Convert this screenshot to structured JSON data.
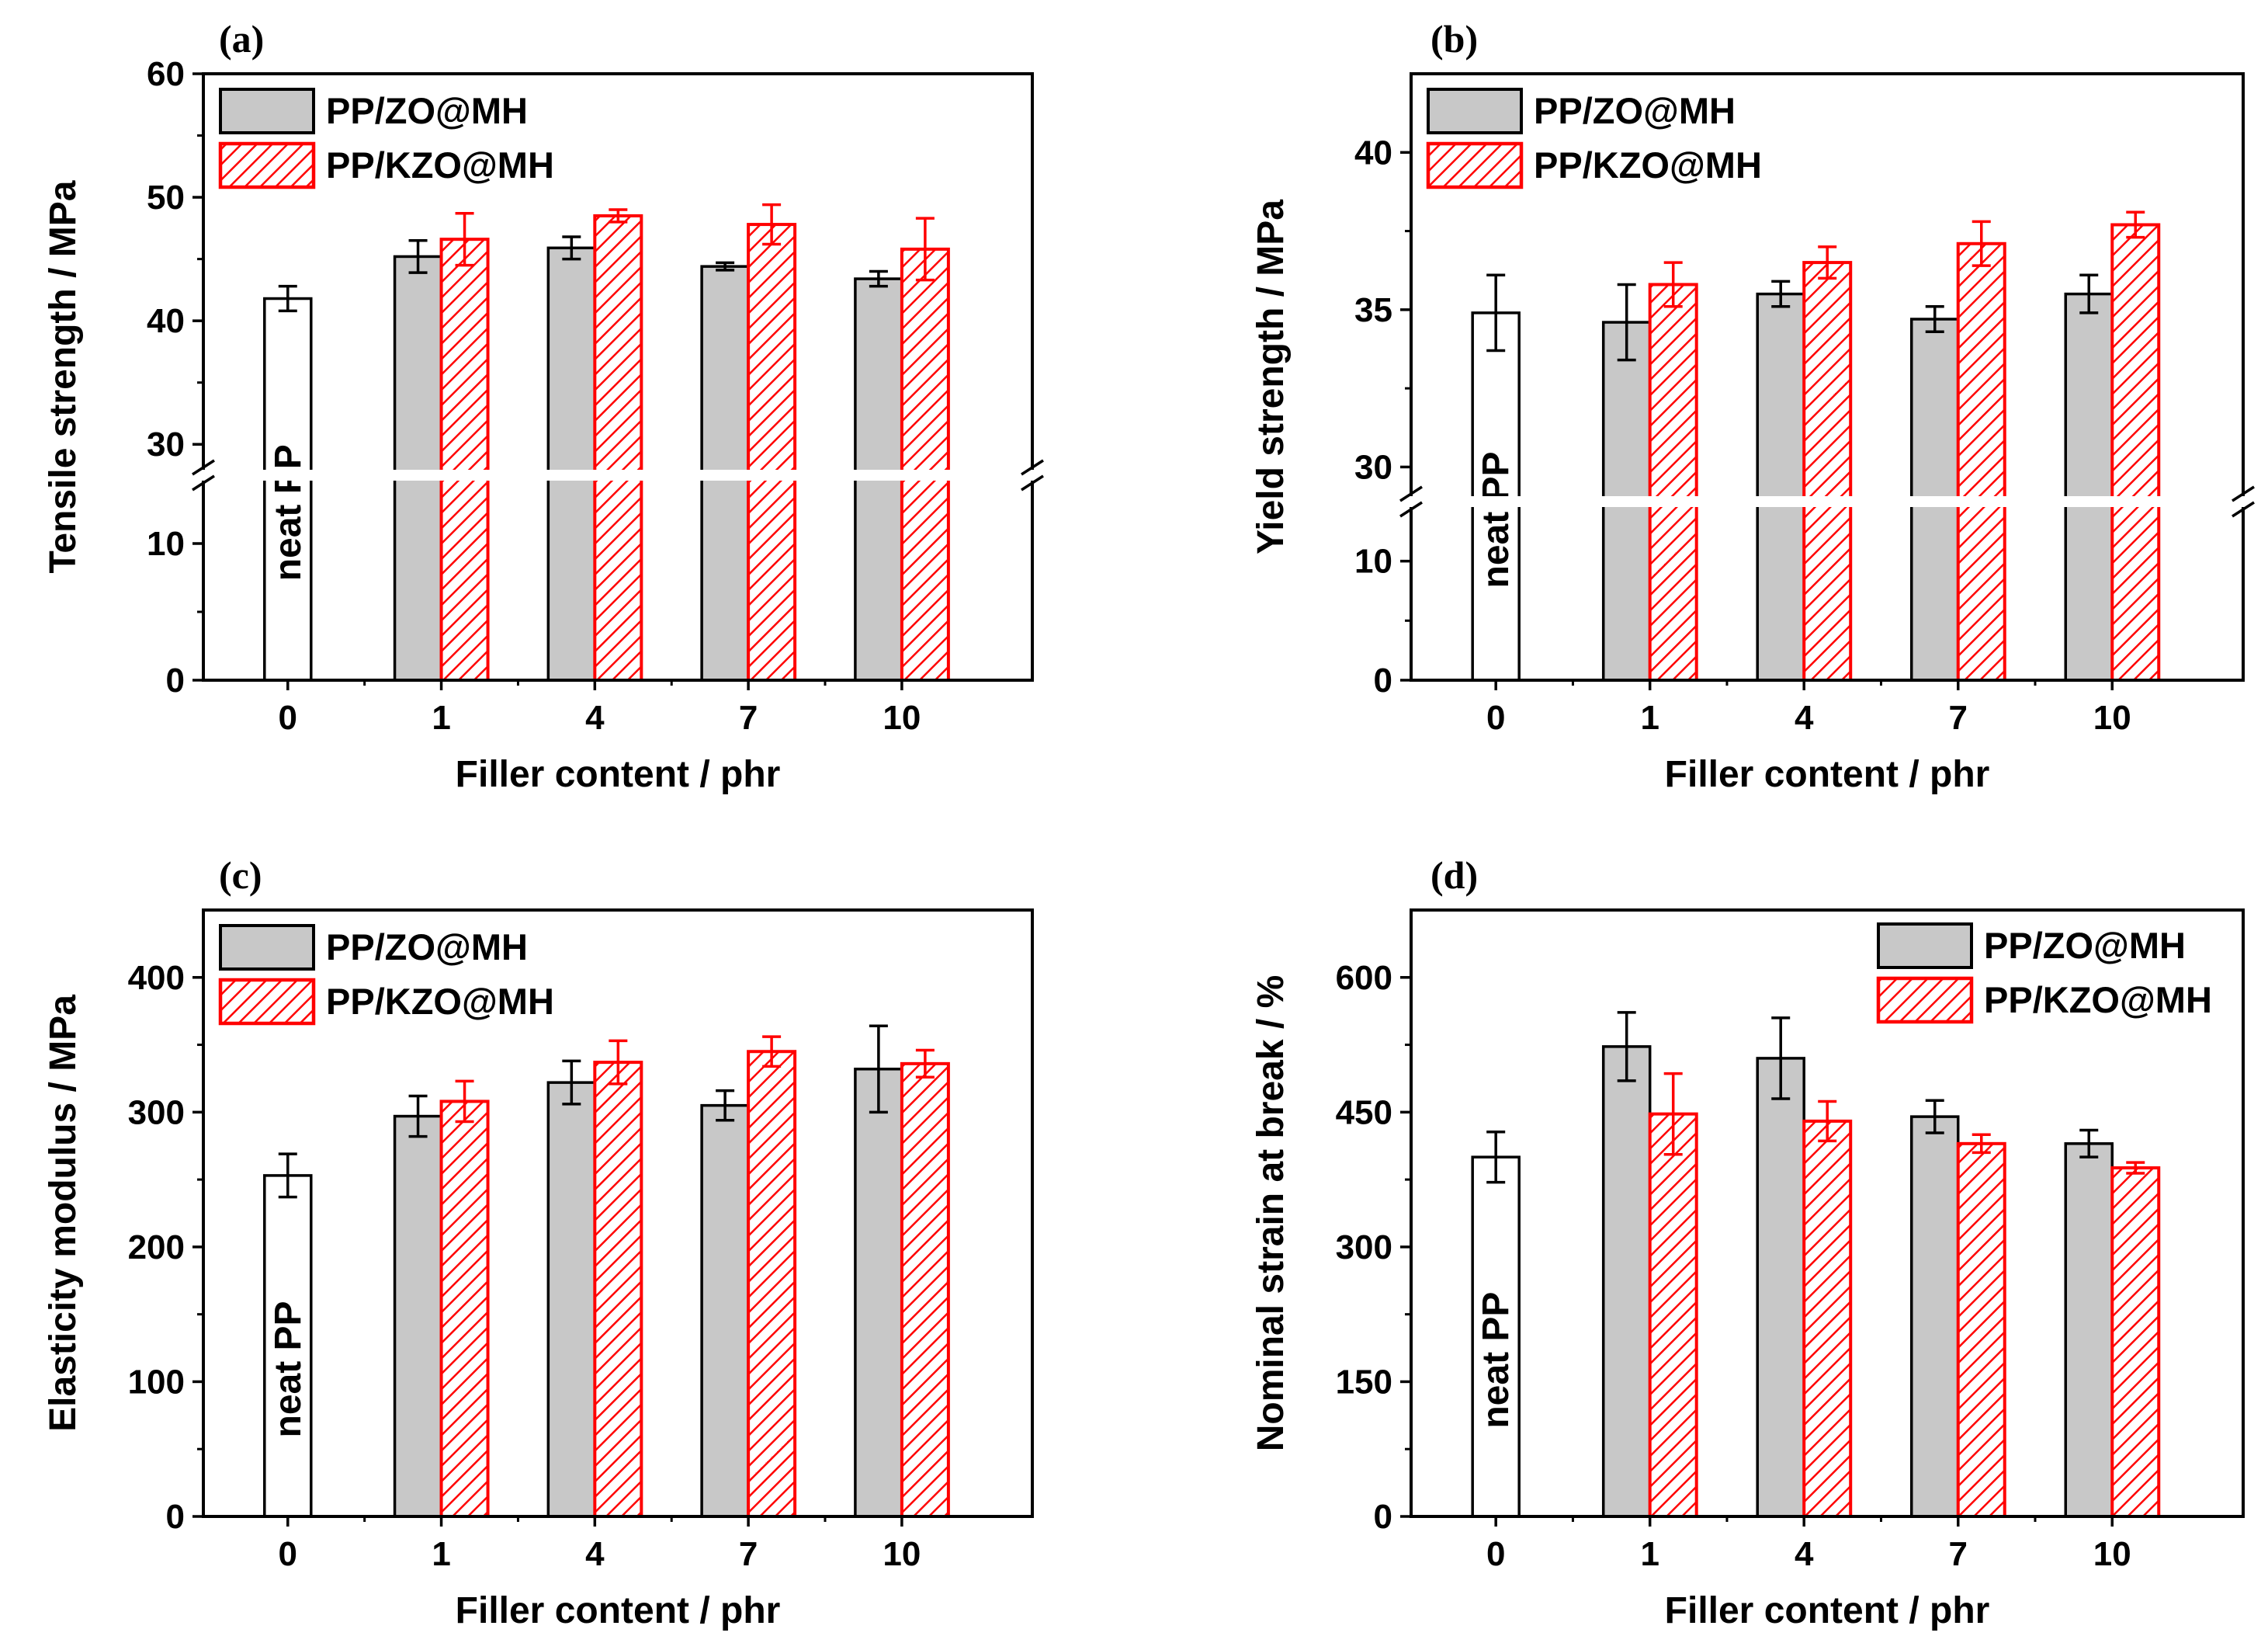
{
  "chart_data": [
    {
      "panel": "(a)",
      "type": "bar",
      "title": "",
      "xlabel": "Filler content / phr",
      "ylabel": "Tensile strength / MPa",
      "categories": [
        "0",
        "1",
        "4",
        "7",
        "10"
      ],
      "axis_break": true,
      "lower_range": [
        0,
        15
      ],
      "lower_ticks": [
        0,
        10
      ],
      "upper_range": [
        27.5,
        60
      ],
      "upper_ticks": [
        30,
        40,
        50,
        60
      ],
      "neat": {
        "label": "neat PP",
        "value": 41.8,
        "error": 1.0
      },
      "series": [
        {
          "name": "PP/ZO@MH",
          "values": [
            null,
            45.2,
            45.9,
            44.4,
            43.4
          ],
          "errors": [
            null,
            1.3,
            0.9,
            0.3,
            0.6
          ]
        },
        {
          "name": "PP/KZO@MH",
          "values": [
            null,
            46.6,
            48.5,
            47.8,
            45.8
          ],
          "errors": [
            null,
            2.1,
            0.5,
            1.6,
            2.5
          ]
        }
      ],
      "legend": "top-left"
    },
    {
      "panel": "(b)",
      "type": "bar",
      "title": "",
      "xlabel": "Filler content / phr",
      "ylabel": "Yield strength / MPa",
      "categories": [
        "0",
        "1",
        "4",
        "7",
        "10"
      ],
      "axis_break": true,
      "lower_range": [
        0,
        15
      ],
      "lower_ticks": [
        0,
        10
      ],
      "upper_range": [
        28.9,
        42.5
      ],
      "upper_ticks": [
        30,
        35,
        40
      ],
      "neat": {
        "label": "neat PP",
        "value": 34.9,
        "error": 1.2
      },
      "series": [
        {
          "name": "PP/ZO@MH",
          "values": [
            null,
            34.6,
            35.5,
            34.7,
            35.5
          ],
          "errors": [
            null,
            1.2,
            0.4,
            0.4,
            0.6
          ]
        },
        {
          "name": "PP/KZO@MH",
          "values": [
            null,
            35.8,
            36.5,
            37.1,
            37.7
          ],
          "errors": [
            null,
            0.7,
            0.5,
            0.7,
            0.4
          ]
        }
      ],
      "legend": "top-left"
    },
    {
      "panel": "(c)",
      "type": "bar",
      "title": "",
      "xlabel": "Filler content / phr",
      "ylabel": "Elasticity modulus / MPa",
      "categories": [
        "0",
        "1",
        "4",
        "7",
        "10"
      ],
      "axis_break": false,
      "range": [
        0,
        450
      ],
      "ticks": [
        0,
        100,
        200,
        300,
        400
      ],
      "neat": {
        "label": "neat PP",
        "value": 253,
        "error": 16
      },
      "series": [
        {
          "name": "PP/ZO@MH",
          "values": [
            null,
            297,
            322,
            305,
            332
          ],
          "errors": [
            null,
            15,
            16,
            11,
            32
          ]
        },
        {
          "name": "PP/KZO@MH",
          "values": [
            null,
            308,
            337,
            345,
            336
          ],
          "errors": [
            null,
            15,
            16,
            11,
            10
          ]
        }
      ],
      "legend": "top-left"
    },
    {
      "panel": "(d)",
      "type": "bar",
      "title": "",
      "xlabel": "Filler content / phr",
      "ylabel": "Nominal strain at break / %",
      "categories": [
        "0",
        "1",
        "4",
        "7",
        "10"
      ],
      "axis_break": false,
      "range": [
        0,
        675
      ],
      "ticks": [
        0,
        150,
        300,
        450,
        600
      ],
      "neat": {
        "label": "neat PP",
        "value": 400,
        "error": 28
      },
      "series": [
        {
          "name": "PP/ZO@MH",
          "values": [
            null,
            523,
            510,
            445,
            415
          ],
          "errors": [
            null,
            38,
            45,
            18,
            15
          ]
        },
        {
          "name": "PP/KZO@MH",
          "values": [
            null,
            448,
            440,
            415,
            388
          ],
          "errors": [
            null,
            45,
            22,
            10,
            6
          ]
        }
      ],
      "legend": "top-right"
    }
  ],
  "style": {
    "zo_fill": "#c8c8c8",
    "kzo_color": "#ff0000",
    "error_zo": "#000000",
    "error_kzo": "#ff0000"
  }
}
